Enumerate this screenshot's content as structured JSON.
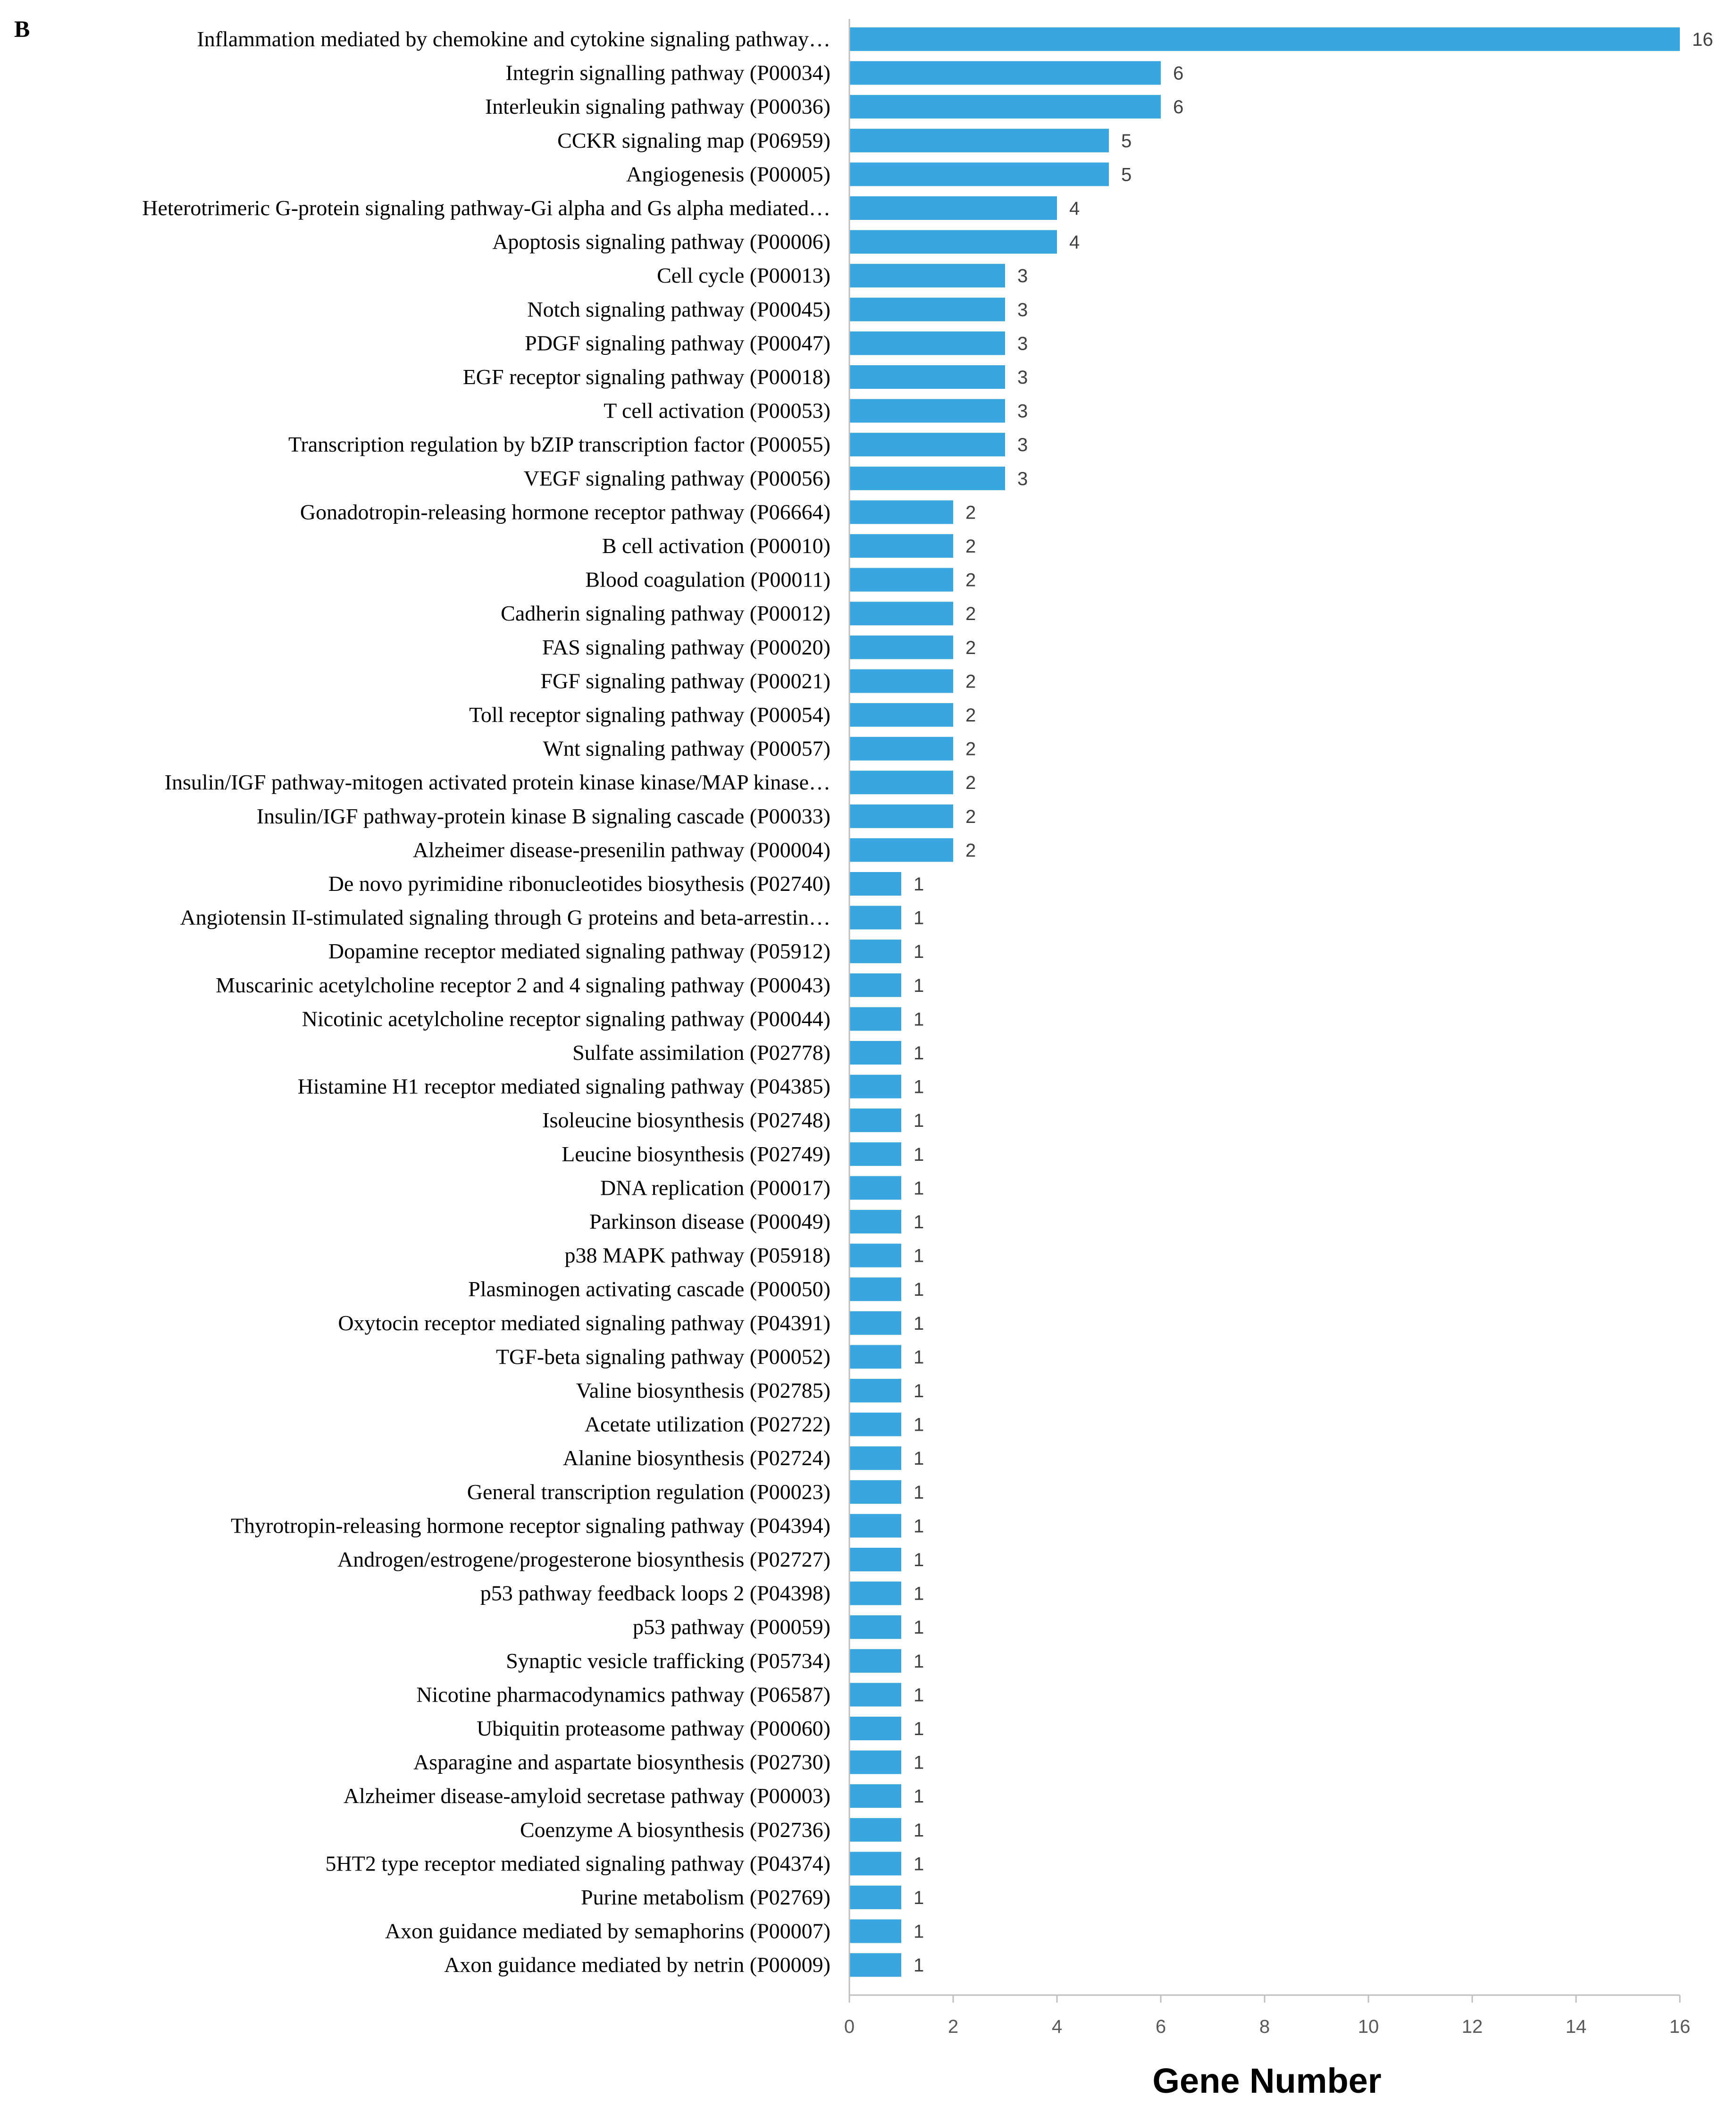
{
  "panel_label": "B",
  "chart_data": {
    "type": "bar",
    "orientation": "horizontal",
    "title": "",
    "xlabel": "Gene Number",
    "ylabel": "",
    "xlim": [
      0,
      16
    ],
    "xticks": [
      0,
      2,
      4,
      6,
      8,
      10,
      12,
      14,
      16
    ],
    "grid": false,
    "bar_color": "#39a6e0",
    "categories": [
      "Inflammation mediated by chemokine and cytokine signaling pathway…",
      "Integrin signalling pathway (P00034)",
      "Interleukin signaling pathway (P00036)",
      "CCKR signaling map (P06959)",
      "Angiogenesis (P00005)",
      "Heterotrimeric G-protein signaling pathway-Gi alpha and Gs alpha mediated…",
      "Apoptosis signaling pathway (P00006)",
      "Cell cycle (P00013)",
      "Notch signaling pathway (P00045)",
      "PDGF signaling pathway (P00047)",
      "EGF receptor signaling pathway (P00018)",
      "T cell activation (P00053)",
      "Transcription regulation by bZIP transcription factor (P00055)",
      "VEGF signaling pathway (P00056)",
      "Gonadotropin-releasing hormone receptor pathway (P06664)",
      "B cell activation (P00010)",
      "Blood coagulation (P00011)",
      "Cadherin signaling pathway (P00012)",
      "FAS signaling pathway (P00020)",
      "FGF signaling pathway (P00021)",
      "Toll receptor signaling pathway (P00054)",
      "Wnt signaling pathway (P00057)",
      "Insulin/IGF pathway-mitogen activated protein kinase kinase/MAP kinase…",
      "Insulin/IGF pathway-protein kinase B signaling cascade (P00033)",
      "Alzheimer disease-presenilin pathway (P00004)",
      "De novo pyrimidine ribonucleotides biosythesis (P02740)",
      "Angiotensin II-stimulated signaling through G proteins and beta-arrestin…",
      "Dopamine receptor mediated signaling pathway (P05912)",
      "Muscarinic acetylcholine receptor 2 and 4 signaling pathway (P00043)",
      "Nicotinic acetylcholine receptor signaling pathway (P00044)",
      "Sulfate assimilation (P02778)",
      "Histamine H1 receptor mediated signaling pathway (P04385)",
      "Isoleucine biosynthesis (P02748)",
      "Leucine biosynthesis (P02749)",
      "DNA replication (P00017)",
      "Parkinson disease (P00049)",
      "p38 MAPK pathway (P05918)",
      "Plasminogen activating cascade (P00050)",
      "Oxytocin receptor mediated signaling pathway (P04391)",
      "TGF-beta signaling pathway (P00052)",
      "Valine biosynthesis (P02785)",
      "Acetate utilization (P02722)",
      "Alanine biosynthesis (P02724)",
      "General transcription regulation (P00023)",
      "Thyrotropin-releasing hormone receptor signaling pathway (P04394)",
      "Androgen/estrogene/progesterone biosynthesis (P02727)",
      "p53 pathway feedback loops 2 (P04398)",
      "p53 pathway (P00059)",
      "Synaptic vesicle trafficking (P05734)",
      "Nicotine pharmacodynamics pathway (P06587)",
      "Ubiquitin proteasome pathway (P00060)",
      "Asparagine and aspartate biosynthesis (P02730)",
      "Alzheimer disease-amyloid secretase pathway (P00003)",
      "Coenzyme A biosynthesis (P02736)",
      "5HT2 type receptor mediated signaling pathway (P04374)",
      "Purine metabolism (P02769)",
      "Axon guidance mediated by semaphorins (P00007)",
      "Axon guidance mediated by netrin (P00009)"
    ],
    "values": [
      16,
      6,
      6,
      5,
      5,
      4,
      4,
      3,
      3,
      3,
      3,
      3,
      3,
      3,
      2,
      2,
      2,
      2,
      2,
      2,
      2,
      2,
      2,
      2,
      2,
      1,
      1,
      1,
      1,
      1,
      1,
      1,
      1,
      1,
      1,
      1,
      1,
      1,
      1,
      1,
      1,
      1,
      1,
      1,
      1,
      1,
      1,
      1,
      1,
      1,
      1,
      1,
      1,
      1,
      1,
      1,
      1,
      1
    ]
  }
}
